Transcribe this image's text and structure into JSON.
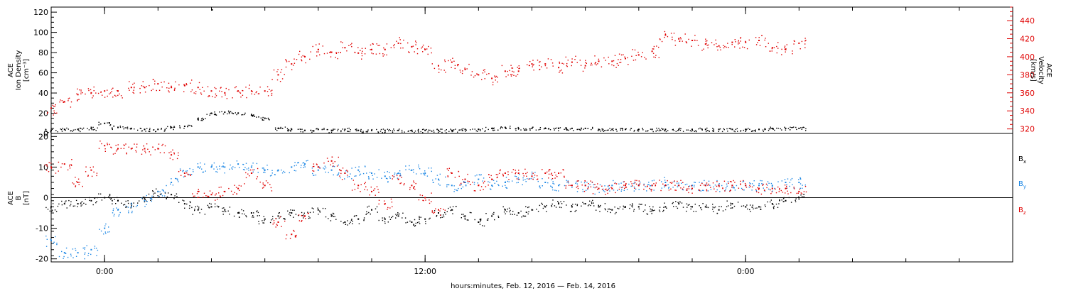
{
  "chart_data": [
    {
      "type": "scatter",
      "panel": "top",
      "left_axis": {
        "label_lines": [
          "ACE",
          "Ion Density",
          "[cm⁻³]"
        ],
        "ylim": [
          0,
          125
        ],
        "ticks": [
          "0",
          "20",
          "40",
          "60",
          "80",
          "100",
          "120"
        ],
        "color": "#000000"
      },
      "right_axis": {
        "label_lines": [
          "ACE",
          "Velocity",
          "[km/s]"
        ],
        "ylim": [
          315,
          455
        ],
        "ticks": [
          "320",
          "340",
          "360",
          "380",
          "400",
          "420",
          "440"
        ],
        "color": "#e00000"
      },
      "series": [
        {
          "color": "#000000",
          "axis": "left",
          "x": [
            -2.0,
            -1.5,
            -1.0,
            -0.5,
            0.0,
            0.5,
            1.0,
            1.5,
            2.0,
            2.5,
            3.0,
            3.5,
            4.0,
            4.5,
            5.0,
            5.5,
            6.0,
            6.5,
            7.0,
            7.5,
            8.0,
            8.5,
            9.0,
            9.5,
            10.0,
            10.5,
            11.0,
            11.5,
            12.0,
            12.5,
            13.0,
            13.5,
            14.0,
            14.5,
            15.0,
            15.5,
            16.0,
            16.5,
            17.0,
            17.5,
            18.0,
            18.5,
            19.0,
            19.5,
            20.0,
            20.5,
            21.0,
            21.5,
            22.0,
            22.5,
            23.0,
            23.5,
            24.0,
            24.5,
            25.0,
            25.5,
            26.0
          ],
          "y": [
            3,
            4,
            4,
            5,
            10,
            6,
            5,
            4,
            4,
            6,
            7,
            14,
            20,
            21,
            20,
            18,
            15,
            5,
            4,
            3,
            4,
            3,
            4,
            3,
            3,
            3,
            3,
            3,
            3,
            3,
            3,
            4,
            4,
            5,
            6,
            5,
            5,
            5,
            5,
            5,
            5,
            4,
            4,
            4,
            4,
            4,
            4,
            4,
            4,
            4,
            4,
            4,
            4,
            4,
            5,
            5,
            5
          ]
        },
        {
          "color": "#e00000",
          "axis": "right",
          "x": [
            -2.0,
            -1.5,
            -1.0,
            -0.5,
            0.0,
            0.5,
            1.0,
            1.5,
            2.0,
            2.5,
            3.0,
            3.5,
            4.0,
            4.5,
            5.0,
            5.5,
            6.0,
            6.5,
            7.0,
            7.5,
            8.0,
            8.5,
            9.0,
            9.5,
            10.0,
            10.5,
            11.0,
            11.5,
            12.0,
            12.5,
            13.0,
            13.5,
            14.0,
            14.5,
            15.0,
            15.5,
            16.0,
            16.5,
            17.0,
            17.5,
            18.0,
            18.5,
            19.0,
            19.5,
            20.0,
            20.5,
            21.0,
            21.5,
            22.0,
            22.5,
            23.0,
            23.5,
            24.0,
            24.5,
            25.0,
            25.5,
            26.0
          ],
          "y": [
            343,
            350,
            358,
            360,
            362,
            362,
            366,
            366,
            370,
            366,
            368,
            366,
            362,
            360,
            362,
            362,
            362,
            380,
            392,
            400,
            408,
            405,
            410,
            404,
            408,
            408,
            415,
            411,
            408,
            390,
            394,
            386,
            380,
            376,
            384,
            384,
            392,
            392,
            388,
            394,
            390,
            395,
            395,
            398,
            402,
            406,
            424,
            420,
            418,
            414,
            412,
            416,
            416,
            418,
            410,
            408,
            415
          ]
        }
      ]
    },
    {
      "type": "scatter",
      "panel": "bottom",
      "left_axis": {
        "label_lines": [
          "ACE",
          "B",
          "[nT]"
        ],
        "ylim": [
          -21,
          21
        ],
        "ticks": [
          "-20",
          "-10",
          "0",
          "10",
          "20"
        ],
        "color": "#000000"
      },
      "legend": [
        {
          "label": "B",
          "sub": "x",
          "color": "#000000"
        },
        {
          "label": "B",
          "sub": "y",
          "color": "#1e88e5"
        },
        {
          "label": "B",
          "sub": "z",
          "color": "#e00000"
        }
      ],
      "series": [
        {
          "color": "#000000",
          "x": [
            -2.0,
            -1.5,
            -1.0,
            -0.5,
            0.0,
            0.5,
            1.0,
            1.5,
            2.0,
            2.5,
            3.0,
            3.5,
            4.0,
            4.5,
            5.0,
            5.5,
            6.0,
            6.5,
            7.0,
            7.5,
            8.0,
            8.5,
            9.0,
            9.5,
            10.0,
            10.5,
            11.0,
            11.5,
            12.0,
            12.5,
            13.0,
            13.5,
            14.0,
            14.5,
            15.0,
            15.5,
            16.0,
            16.5,
            17.0,
            17.5,
            18.0,
            18.5,
            19.0,
            19.5,
            20.0,
            20.5,
            21.0,
            21.5,
            22.0,
            22.5,
            23.0,
            23.5,
            24.0,
            24.5,
            25.0,
            25.5,
            26.0
          ],
          "y": [
            -3,
            -2,
            -2,
            -1,
            0,
            -1,
            -2,
            0,
            2,
            1,
            -2,
            -4,
            -3,
            -4,
            -5,
            -5,
            -7,
            -6,
            -5,
            -6,
            -4,
            -6,
            -8,
            -7,
            -4,
            -7,
            -6,
            -8,
            -7,
            -5,
            -4,
            -6,
            -8,
            -6,
            -4,
            -5,
            -4,
            -3,
            -2,
            -3,
            -2,
            -3,
            -4,
            -3,
            -3,
            -4,
            -3,
            -2,
            -3,
            -3,
            -4,
            -2,
            -3,
            -3,
            -2,
            -1,
            0
          ]
        },
        {
          "color": "#1e88e5",
          "x": [
            -2.0,
            -1.5,
            -1.0,
            -0.5,
            0.0,
            0.5,
            1.0,
            1.5,
            2.0,
            2.5,
            3.0,
            3.5,
            4.0,
            4.5,
            5.0,
            5.5,
            6.0,
            6.5,
            7.0,
            7.5,
            8.0,
            8.5,
            9.0,
            9.5,
            10.0,
            10.5,
            11.0,
            11.5,
            12.0,
            12.5,
            13.0,
            13.5,
            14.0,
            14.5,
            15.0,
            15.5,
            16.0,
            16.5,
            17.0,
            17.5,
            18.0,
            18.5,
            19.0,
            19.5,
            20.0,
            20.5,
            21.0,
            21.5,
            22.0,
            22.5,
            23.0,
            23.5,
            24.0,
            24.5,
            25.0,
            25.5,
            26.0
          ],
          "y": [
            -14,
            -18,
            -18,
            -17,
            -10,
            -4,
            -3,
            -1,
            2,
            5,
            8,
            10,
            10,
            10,
            11,
            10,
            9,
            9,
            10,
            11,
            9,
            9,
            8,
            9,
            8,
            7,
            8,
            9,
            8,
            6,
            4,
            5,
            6,
            4,
            5,
            6,
            7,
            5,
            4,
            4,
            4,
            3,
            4,
            4,
            4,
            4,
            5,
            4,
            4,
            4,
            4,
            4,
            4,
            4,
            4,
            5,
            5
          ]
        },
        {
          "color": "#e00000",
          "x": [
            -2.0,
            -1.5,
            -1.0,
            -0.5,
            0.0,
            0.5,
            1.0,
            1.5,
            2.0,
            2.5,
            3.0,
            3.5,
            4.0,
            4.5,
            5.0,
            5.5,
            6.0,
            6.5,
            7.0,
            7.5,
            8.0,
            8.5,
            9.0,
            9.5,
            10.0,
            10.5,
            11.0,
            11.5,
            12.0,
            12.5,
            13.0,
            13.5,
            14.0,
            14.5,
            15.0,
            15.5,
            16.0,
            16.5,
            17.0,
            17.5,
            18.0,
            18.5,
            19.0,
            19.5,
            20.0,
            20.5,
            21.0,
            21.5,
            22.0,
            22.5,
            23.0,
            23.5,
            24.0,
            24.5,
            25.0,
            25.5,
            26.0
          ],
          "y": [
            10,
            11,
            5,
            9,
            17,
            16,
            16,
            16,
            16,
            14,
            8,
            2,
            1,
            2,
            3,
            8,
            4,
            -8,
            -12,
            -6,
            10,
            12,
            8,
            4,
            2,
            -2,
            6,
            4,
            0,
            -4,
            8,
            6,
            4,
            6,
            8,
            8,
            7,
            8,
            8,
            4,
            4,
            3,
            3,
            4,
            4,
            4,
            4,
            4,
            3,
            4,
            4,
            4,
            4,
            3,
            3,
            3,
            2
          ]
        }
      ]
    }
  ],
  "x_axis": {
    "unit": "hours",
    "range": [
      -2.0,
      34.0
    ],
    "major_ticks": [
      0,
      12,
      24
    ],
    "major_labels": [
      "0:00",
      "12:00",
      "0:00"
    ],
    "minor_step": 2,
    "title": "hours:minutes, Feb. 12, 2016 — Feb. 14, 2016"
  },
  "annotations": {
    "stray_point_top": {
      "x": 4.0,
      "y": 123
    }
  }
}
